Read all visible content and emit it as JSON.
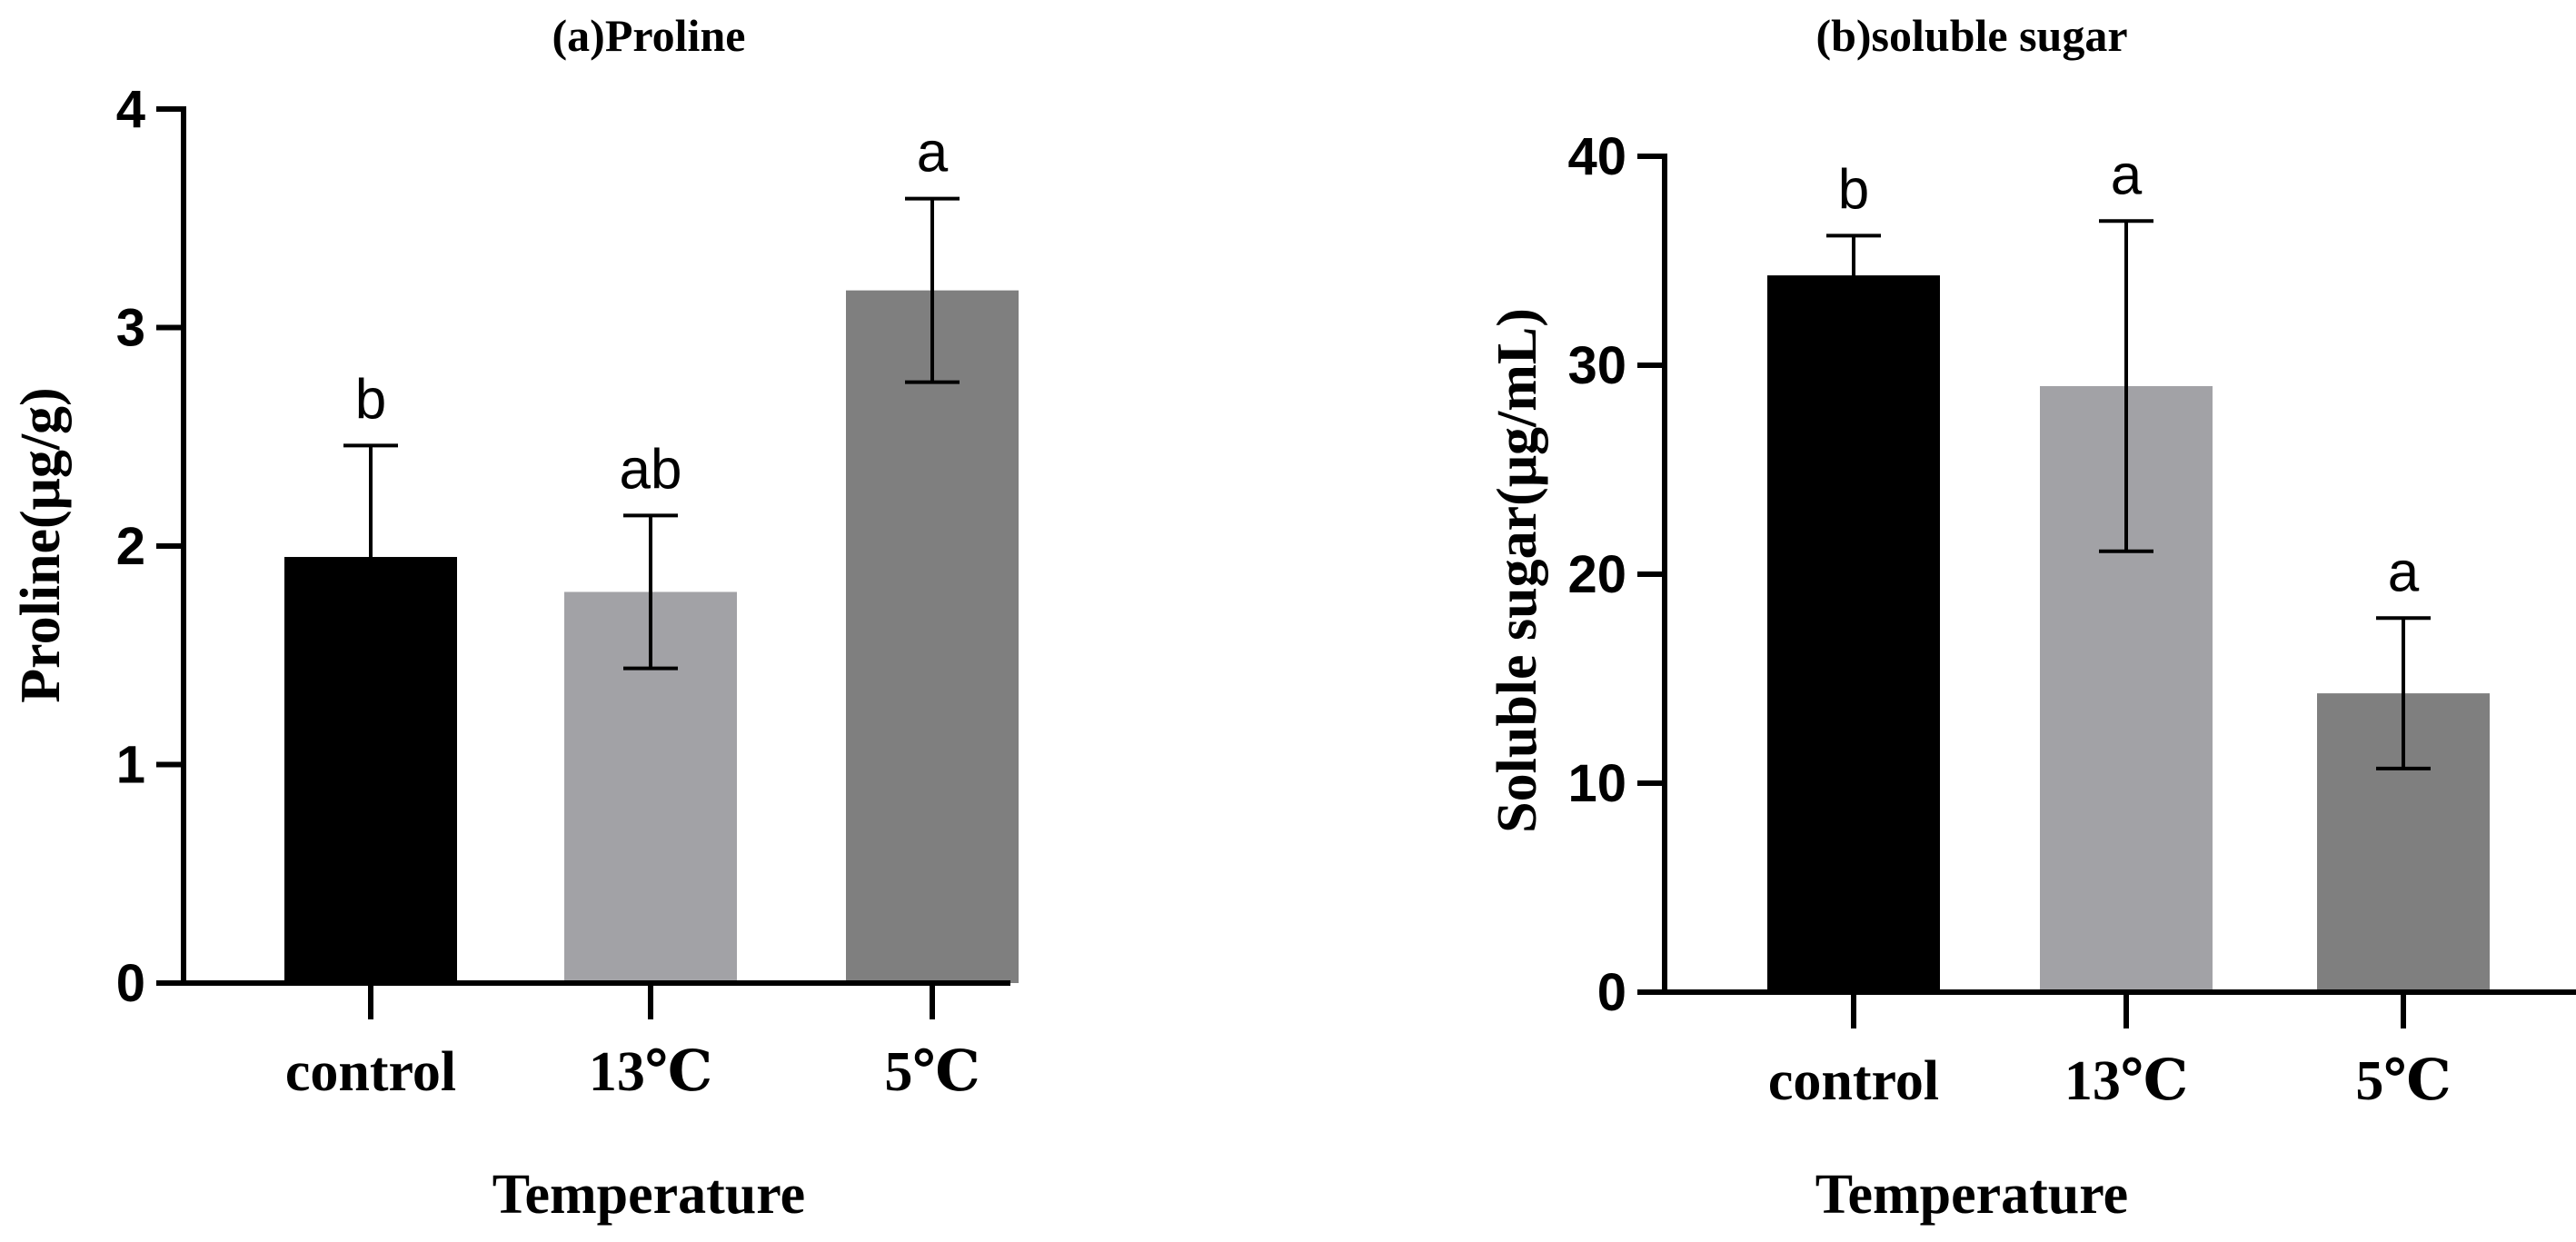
{
  "chart_data": [
    {
      "type": "bar",
      "title": "(a)Proline",
      "xlabel": "Temperature",
      "ylabel": "Proline(μg/g)",
      "categories": [
        "control",
        "13℃",
        "5℃"
      ],
      "values": [
        1.95,
        1.79,
        3.17
      ],
      "errors": [
        0.51,
        0.35,
        0.42
      ],
      "significance": [
        "b",
        "ab",
        "a"
      ],
      "colors": [
        "#000000",
        "#a2a2a6",
        "#7f7f7f"
      ],
      "ylim": [
        0,
        4
      ],
      "yticks": [
        0,
        1,
        2,
        3,
        4
      ]
    },
    {
      "type": "bar",
      "title": "(b)soluble sugar",
      "xlabel": "Temperature",
      "ylabel": "Soluble sugar(μg/mL)",
      "categories": [
        "control",
        "13℃",
        "5℃"
      ],
      "values": [
        34.3,
        29.0,
        14.3
      ],
      "errors": [
        1.9,
        7.9,
        3.6
      ],
      "significance": [
        "b",
        "a",
        "a"
      ],
      "colors": [
        "#000000",
        "#a2a2a6",
        "#7f7f7f"
      ],
      "ylim": [
        0,
        40
      ],
      "yticks": [
        0,
        10,
        20,
        30,
        40
      ]
    }
  ]
}
